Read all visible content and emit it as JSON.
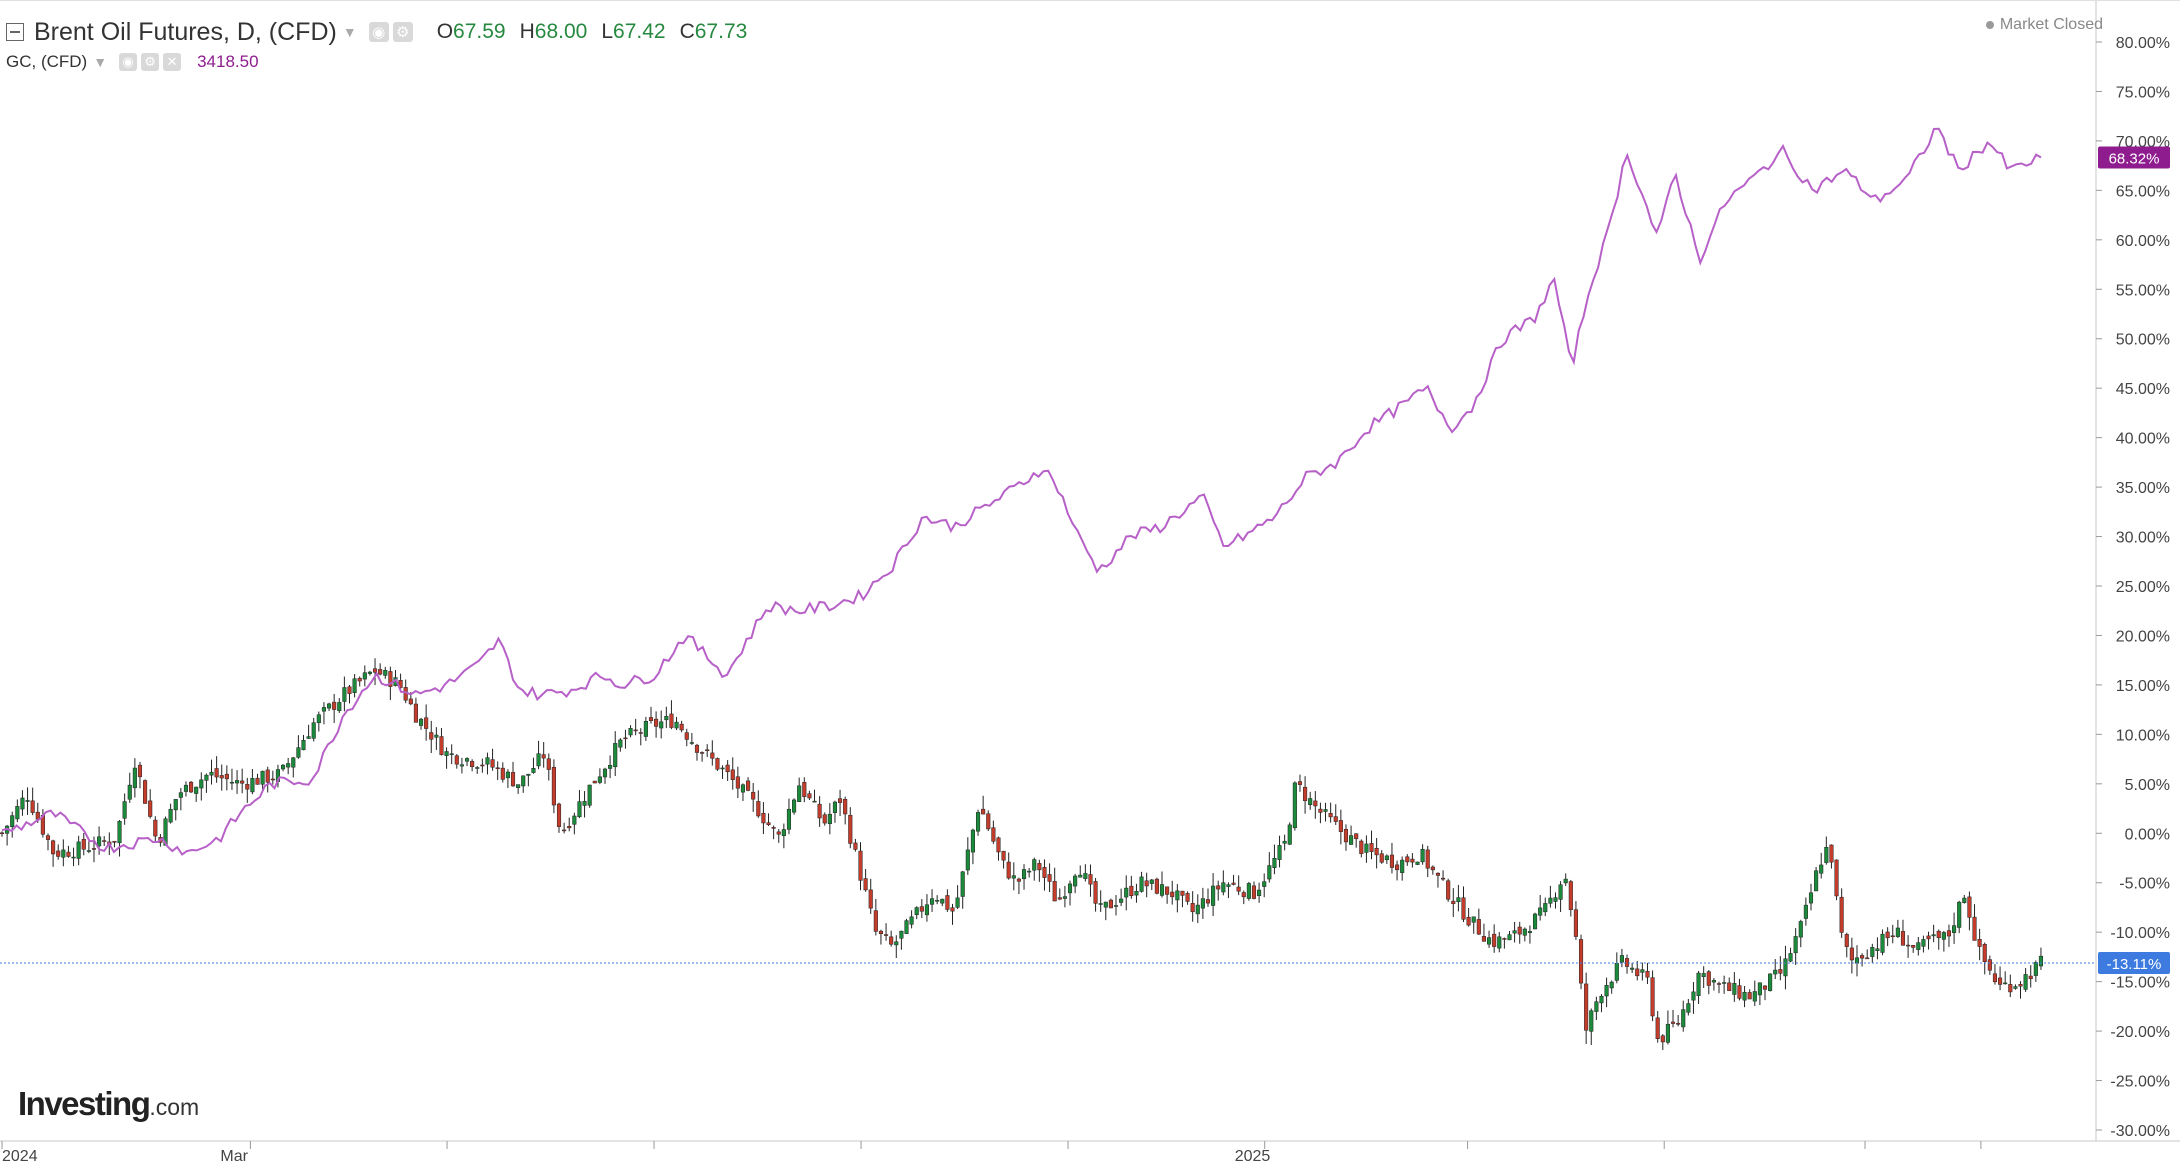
{
  "header": {
    "primary_title": "Brent Oil Futures, D, (CFD)",
    "primary_ohlc": [
      {
        "label": "O",
        "value": "67.59"
      },
      {
        "label": "H",
        "value": "68.00"
      },
      {
        "label": "L",
        "value": "67.42"
      },
      {
        "label": "C",
        "value": "67.73"
      }
    ],
    "secondary_title": "GC, (CFD)",
    "secondary_value": "3418.50",
    "market_status": "Market Closed"
  },
  "logo": {
    "brand": "Investing",
    "suffix": ".com"
  },
  "colors": {
    "up_candle": "#1b8a3a",
    "down_candle": "#c43c2c",
    "gold_line": "#b760c8",
    "gold_badge": "#8e1c8e",
    "price_line_badge": "#3e7be0",
    "grid": "#e0e0e0"
  },
  "chart_data": {
    "type": "line",
    "subtype": "candlestick-comparison",
    "xlabel": "",
    "ylabel": "",
    "ylim": [
      -31,
      83
    ],
    "y_ticks": [
      "80.00%",
      "75.00%",
      "70.00%",
      "65.00%",
      "60.00%",
      "55.00%",
      "50.00%",
      "45.00%",
      "40.00%",
      "35.00%",
      "30.00%",
      "25.00%",
      "20.00%",
      "15.00%",
      "10.00%",
      "5.00%",
      "0.00%",
      "-5.00%",
      "-10.00%",
      "-15.00%",
      "-20.00%",
      "-25.00%",
      "-30.00%"
    ],
    "x_ticks": [
      {
        "label": "2024",
        "t": 0
      },
      {
        "label": "Mar",
        "t": 0.12
      },
      {
        "label": "2025",
        "t": 0.61
      }
    ],
    "x_minor_ticks": [
      0.215,
      0.315,
      0.415,
      0.515,
      0.708,
      0.803,
      0.9,
      0.956
    ],
    "grid": false,
    "legend": "top-left",
    "badges": [
      {
        "series": "GC, (CFD)",
        "value": 68.32,
        "text": "68.32%"
      },
      {
        "series": "Brent Oil Futures, D, (CFD)",
        "value": -13.11,
        "text": "-13.11%"
      }
    ],
    "series": [
      {
        "name": "Brent Oil Futures, D, (CFD)",
        "kind": "candlestick",
        "keypoints": [
          [
            0,
            0
          ],
          [
            0.012,
            4
          ],
          [
            0.025,
            -2
          ],
          [
            0.04,
            -1.5
          ],
          [
            0.055,
            -0.5
          ],
          [
            0.064,
            7.5
          ],
          [
            0.075,
            -1
          ],
          [
            0.085,
            4
          ],
          [
            0.1,
            6
          ],
          [
            0.115,
            5
          ],
          [
            0.135,
            6
          ],
          [
            0.15,
            11
          ],
          [
            0.165,
            14
          ],
          [
            0.18,
            16.5
          ],
          [
            0.192,
            15
          ],
          [
            0.2,
            12
          ],
          [
            0.215,
            8
          ],
          [
            0.235,
            7
          ],
          [
            0.25,
            5
          ],
          [
            0.262,
            8
          ],
          [
            0.27,
            0
          ],
          [
            0.285,
            5
          ],
          [
            0.3,
            9.5
          ],
          [
            0.315,
            11
          ],
          [
            0.325,
            11.5
          ],
          [
            0.335,
            9
          ],
          [
            0.35,
            6
          ],
          [
            0.365,
            2.5
          ],
          [
            0.375,
            -0.5
          ],
          [
            0.385,
            5
          ],
          [
            0.397,
            1
          ],
          [
            0.405,
            3.5
          ],
          [
            0.412,
            -2
          ],
          [
            0.422,
            -10
          ],
          [
            0.43,
            -11.5
          ],
          [
            0.45,
            -6
          ],
          [
            0.46,
            -8
          ],
          [
            0.472,
            3
          ],
          [
            0.483,
            -3
          ],
          [
            0.49,
            -5
          ],
          [
            0.5,
            -3
          ],
          [
            0.51,
            -7
          ],
          [
            0.52,
            -3
          ],
          [
            0.53,
            -8
          ],
          [
            0.55,
            -5
          ],
          [
            0.565,
            -6
          ],
          [
            0.575,
            -8
          ],
          [
            0.59,
            -5
          ],
          [
            0.605,
            -6
          ],
          [
            0.62,
            -1
          ],
          [
            0.625,
            5
          ],
          [
            0.635,
            2.5
          ],
          [
            0.648,
            0
          ],
          [
            0.66,
            -2
          ],
          [
            0.675,
            -3
          ],
          [
            0.685,
            -2
          ],
          [
            0.695,
            -5
          ],
          [
            0.71,
            -9
          ],
          [
            0.72,
            -11
          ],
          [
            0.73,
            -10.5
          ],
          [
            0.745,
            -8
          ],
          [
            0.755,
            -4
          ],
          [
            0.76,
            -10
          ],
          [
            0.765,
            -20
          ],
          [
            0.772,
            -16
          ],
          [
            0.783,
            -13
          ],
          [
            0.795,
            -15
          ],
          [
            0.8,
            -21
          ],
          [
            0.81,
            -19
          ],
          [
            0.82,
            -14
          ],
          [
            0.83,
            -15.5
          ],
          [
            0.845,
            -16.5
          ],
          [
            0.86,
            -14
          ],
          [
            0.87,
            -9
          ],
          [
            0.878,
            -3
          ],
          [
            0.883,
            -1
          ],
          [
            0.888,
            -10
          ],
          [
            0.893,
            -13
          ],
          [
            0.9,
            -12
          ],
          [
            0.915,
            -10
          ],
          [
            0.925,
            -12
          ],
          [
            0.93,
            -11
          ],
          [
            0.94,
            -10.5
          ],
          [
            0.948,
            -6
          ],
          [
            0.955,
            -12
          ],
          [
            0.965,
            -15.5
          ],
          [
            0.975,
            -15
          ],
          [
            0.985,
            -13.11
          ]
        ]
      },
      {
        "name": "GC, (CFD)",
        "kind": "line",
        "keypoints": [
          [
            0,
            0
          ],
          [
            0.025,
            2
          ],
          [
            0.05,
            -1.5
          ],
          [
            0.075,
            -0.5
          ],
          [
            0.09,
            -2
          ],
          [
            0.105,
            -0.5
          ],
          [
            0.115,
            2
          ],
          [
            0.13,
            5
          ],
          [
            0.15,
            5.5
          ],
          [
            0.165,
            12
          ],
          [
            0.18,
            16
          ],
          [
            0.2,
            14
          ],
          [
            0.215,
            15
          ],
          [
            0.23,
            17
          ],
          [
            0.24,
            19.5
          ],
          [
            0.25,
            14.5
          ],
          [
            0.26,
            14
          ],
          [
            0.275,
            14.5
          ],
          [
            0.29,
            16
          ],
          [
            0.3,
            15
          ],
          [
            0.315,
            16
          ],
          [
            0.33,
            20
          ],
          [
            0.34,
            18
          ],
          [
            0.35,
            16
          ],
          [
            0.37,
            23
          ],
          [
            0.385,
            22.5
          ],
          [
            0.4,
            23
          ],
          [
            0.415,
            24
          ],
          [
            0.43,
            27
          ],
          [
            0.445,
            32
          ],
          [
            0.46,
            31
          ],
          [
            0.475,
            33
          ],
          [
            0.49,
            35
          ],
          [
            0.503,
            37
          ],
          [
            0.51,
            35
          ],
          [
            0.52,
            30
          ],
          [
            0.53,
            26.5
          ],
          [
            0.545,
            30
          ],
          [
            0.56,
            31
          ],
          [
            0.58,
            34
          ],
          [
            0.59,
            29
          ],
          [
            0.6,
            30
          ],
          [
            0.615,
            32
          ],
          [
            0.63,
            36
          ],
          [
            0.645,
            37.5
          ],
          [
            0.66,
            41
          ],
          [
            0.675,
            43
          ],
          [
            0.688,
            45
          ],
          [
            0.7,
            41
          ],
          [
            0.71,
            43
          ],
          [
            0.725,
            50
          ],
          [
            0.74,
            52
          ],
          [
            0.75,
            56
          ],
          [
            0.758,
            47
          ],
          [
            0.768,
            56
          ],
          [
            0.775,
            60
          ],
          [
            0.785,
            69
          ],
          [
            0.8,
            60
          ],
          [
            0.808,
            67
          ],
          [
            0.82,
            58
          ],
          [
            0.833,
            64
          ],
          [
            0.845,
            66
          ],
          [
            0.86,
            69
          ],
          [
            0.875,
            65
          ],
          [
            0.89,
            67
          ],
          [
            0.905,
            64
          ],
          [
            0.92,
            66
          ],
          [
            0.935,
            71.5
          ],
          [
            0.945,
            67
          ],
          [
            0.96,
            70
          ],
          [
            0.97,
            67
          ],
          [
            0.985,
            68.32
          ]
        ]
      }
    ]
  }
}
